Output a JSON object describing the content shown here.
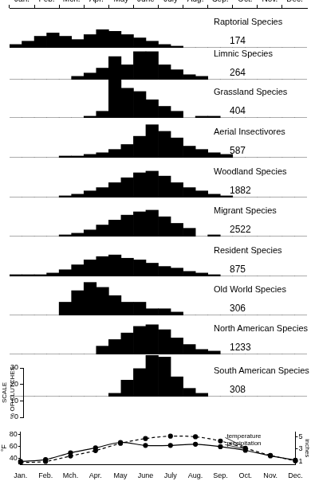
{
  "chart_data": [
    {
      "type": "bar",
      "categories": [
        "Jan.",
        null,
        "Feb.",
        null,
        "Mch.",
        null,
        "Apr.",
        null,
        "May",
        null,
        "June",
        null,
        "July",
        null,
        "Aug.",
        null,
        "Sep.",
        null,
        "Oct.",
        null,
        "Nov.",
        null,
        "Dec.",
        null
      ],
      "ylim": [
        0,
        30
      ],
      "yticks": [
        0,
        10,
        20,
        30
      ],
      "ylabel": [
        "SCALE",
        "% OF CLUTCHES"
      ],
      "color": "#000000",
      "series": [
        {
          "name": "Raptorial Species",
          "n": 174,
          "values": [
            2,
            4,
            7,
            9,
            7,
            5,
            8,
            11,
            10,
            8,
            6,
            4,
            2,
            1,
            0,
            0,
            0,
            0,
            0,
            0,
            0,
            0,
            0,
            0
          ]
        },
        {
          "name": "Limnic Species",
          "n": 264,
          "values": [
            0,
            0,
            0,
            0,
            0,
            2,
            4,
            7,
            14,
            9,
            17,
            17,
            9,
            6,
            3,
            2,
            0,
            0,
            0,
            0,
            0,
            0,
            0,
            0
          ]
        },
        {
          "name": "Grassland Species",
          "n": 404,
          "values": [
            0,
            0,
            0,
            0,
            0,
            0,
            1,
            4,
            29,
            18,
            16,
            11,
            7,
            4,
            0,
            1,
            1,
            0,
            0,
            0,
            0,
            0,
            0,
            0
          ]
        },
        {
          "name": "Aerial Insectivores",
          "n": 587,
          "values": [
            0,
            0,
            0,
            0,
            1,
            1,
            2,
            3,
            5,
            8,
            13,
            20,
            16,
            12,
            7,
            5,
            3,
            2,
            0,
            0,
            0,
            0,
            0,
            0
          ]
        },
        {
          "name": "Woodland Species",
          "n": 1882,
          "values": [
            0,
            0,
            0,
            0,
            1,
            2,
            4,
            6,
            9,
            12,
            15,
            16,
            13,
            9,
            6,
            4,
            2,
            1,
            0,
            0,
            0,
            0,
            0,
            0
          ]
        },
        {
          "name": "Migrant Species",
          "n": 2522,
          "values": [
            0,
            0,
            0,
            0,
            1,
            2,
            4,
            7,
            10,
            13,
            15,
            16,
            12,
            8,
            5,
            0,
            1,
            0,
            0,
            0,
            0,
            0,
            0,
            0
          ]
        },
        {
          "name": "Resident Species",
          "n": 875,
          "values": [
            1,
            1,
            1,
            2,
            4,
            7,
            10,
            12,
            13,
            11,
            10,
            8,
            6,
            5,
            3,
            2,
            1,
            0,
            0,
            0,
            0,
            0,
            0,
            0
          ]
        },
        {
          "name": "Old World Species",
          "n": 306,
          "values": [
            0,
            0,
            0,
            0,
            8,
            15,
            20,
            17,
            12,
            8,
            8,
            4,
            4,
            2,
            0,
            0,
            0,
            0,
            0,
            0,
            0,
            0,
            0,
            0
          ]
        },
        {
          "name": "North American Species",
          "n": 1233,
          "values": [
            0,
            0,
            0,
            0,
            0,
            0,
            0,
            5,
            9,
            13,
            17,
            18,
            15,
            10,
            6,
            3,
            2,
            0,
            0,
            0,
            0,
            0,
            0,
            0
          ]
        },
        {
          "name": "South American Species",
          "n": 308,
          "values": [
            0,
            0,
            0,
            0,
            0,
            0,
            0,
            0,
            2,
            10,
            17,
            25,
            24,
            12,
            5,
            2,
            0,
            0,
            0,
            0,
            0,
            0,
            0,
            0
          ]
        }
      ]
    },
    {
      "type": "line",
      "categories": [
        "Jan.",
        "Feb.",
        "Mch.",
        "Apr.",
        "May",
        "June",
        "July",
        "Aug.",
        "Sep.",
        "Oct.",
        "Nov.",
        "Dec."
      ],
      "ylim": [
        30,
        84
      ],
      "yticks": [
        40,
        60,
        80
      ],
      "ylabel": "°F",
      "y2lim": [
        0.5,
        5.8
      ],
      "y2ticks": [
        1,
        3,
        5
      ],
      "y2label": "inches",
      "series": [
        {
          "name": "temperature",
          "color": "#000000",
          "line_style": "dashed",
          "marker": "circle",
          "values": [
            33,
            35,
            44,
            53,
            65,
            73,
            77,
            76,
            69,
            57,
            45,
            36
          ]
        },
        {
          "name": "precipitation",
          "axis": "y2",
          "color": "#000000",
          "line_style": "solid",
          "marker": "circle",
          "values": [
            1.0,
            1.3,
            2.4,
            3.2,
            4.1,
            3.6,
            3.6,
            3.8,
            3.4,
            2.8,
            1.9,
            1.2
          ]
        }
      ]
    }
  ]
}
